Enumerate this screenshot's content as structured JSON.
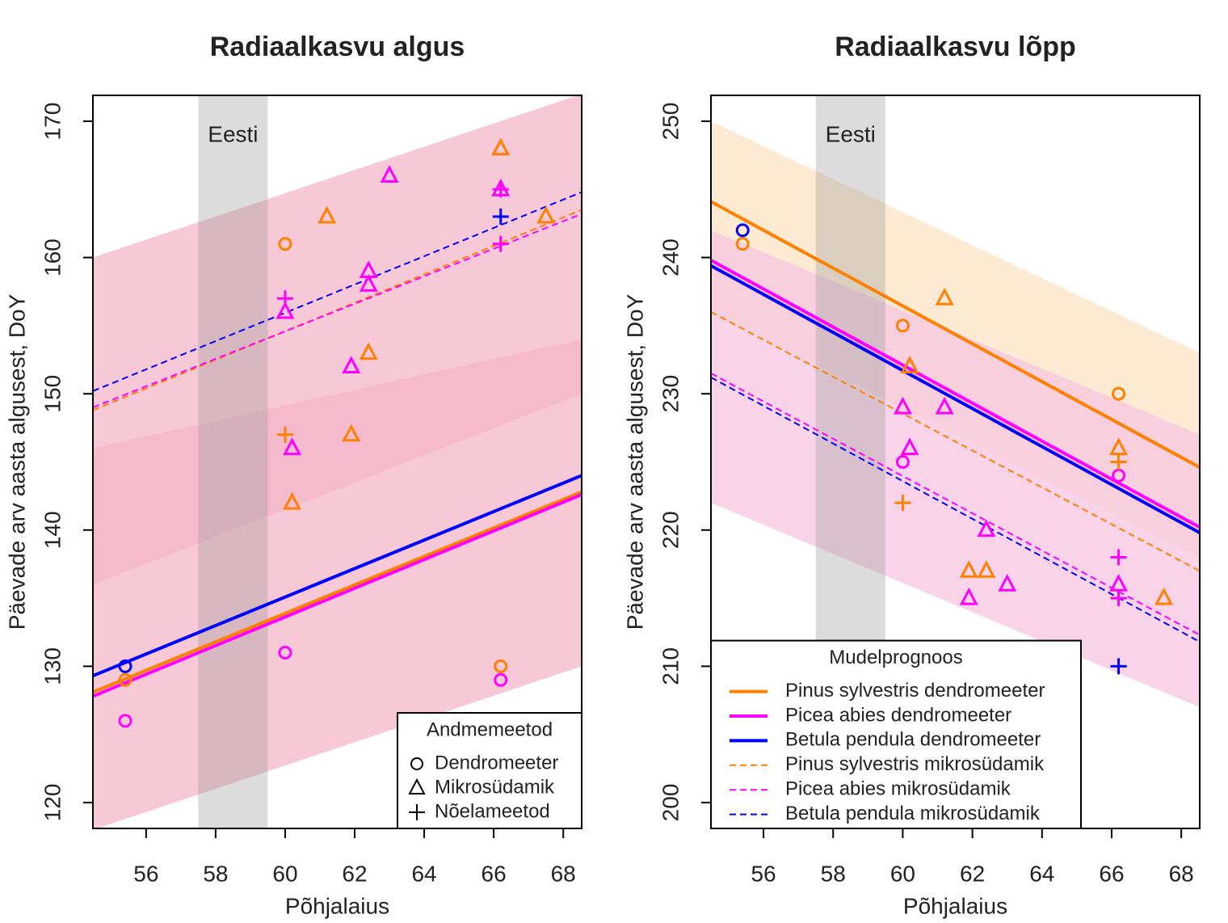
{
  "chart_data": [
    {
      "type": "scatter",
      "title": "Radiaalkasvu algus",
      "xlabel": "Põhjalaius",
      "ylabel": "Päevade arv aasta algusest, DoY",
      "xlim": [
        54.47,
        68.53
      ],
      "ylim": [
        118.1,
        171.9
      ],
      "xticks": [
        56,
        58,
        60,
        62,
        64,
        66,
        68
      ],
      "yticks": [
        120,
        130,
        140,
        150,
        160,
        170
      ],
      "shade": [
        57.5,
        59.5
      ],
      "annotation": "Eesti",
      "bands": [
        {
          "color": "#f4b6c8",
          "x": [
            54.47,
            68.53
          ],
          "lower": [
            118,
            130
          ],
          "upper": [
            146,
            154
          ]
        },
        {
          "color": "#f4b6c8",
          "x": [
            54.47,
            68.53
          ],
          "lower": [
            136,
            150
          ],
          "upper": [
            160,
            172
          ]
        }
      ],
      "lines": [
        {
          "color": "#ff7f00",
          "dash": false,
          "x": [
            54.47,
            68.53
          ],
          "y": [
            128.1,
            142.8
          ]
        },
        {
          "color": "#ff00ff",
          "dash": false,
          "x": [
            54.47,
            68.53
          ],
          "y": [
            127.8,
            142.6
          ]
        },
        {
          "color": "#0000ff",
          "dash": false,
          "x": [
            54.47,
            68.53
          ],
          "y": [
            129.3,
            144
          ]
        },
        {
          "color": "#ff7f00",
          "dash": true,
          "x": [
            54.47,
            68.53
          ],
          "y": [
            148.8,
            163.5
          ]
        },
        {
          "color": "#ff00ff",
          "dash": true,
          "x": [
            54.47,
            68.53
          ],
          "y": [
            149,
            163.2
          ]
        },
        {
          "color": "#0000ff",
          "dash": true,
          "x": [
            54.47,
            68.53
          ],
          "y": [
            150.2,
            164.8
          ]
        }
      ],
      "groups": [
        {
          "marker": "circle",
          "color": "#ff7f00",
          "x": [
            60,
            55.4,
            66.2
          ],
          "y": [
            161,
            129,
            130
          ]
        },
        {
          "marker": "circle",
          "color": "#ff00ff",
          "x": [
            55.4,
            60,
            66.2
          ],
          "y": [
            126,
            131,
            129
          ]
        },
        {
          "marker": "circle",
          "color": "#0000ff",
          "x": [
            55.4
          ],
          "y": [
            130
          ]
        },
        {
          "marker": "triangle",
          "color": "#ff7f00",
          "x": [
            66.2,
            61.2,
            67.5,
            62.4,
            61.9,
            60.2
          ],
          "y": [
            168,
            163,
            163,
            153,
            147,
            142
          ]
        },
        {
          "marker": "triangle",
          "color": "#ff00ff",
          "x": [
            63,
            62.4,
            62.4,
            60,
            61.9,
            60.2,
            66.2
          ],
          "y": [
            166,
            159,
            158,
            156,
            152,
            146,
            165
          ]
        },
        {
          "marker": "plus",
          "color": "#ff7f00",
          "x": [
            60
          ],
          "y": [
            147
          ]
        },
        {
          "marker": "plus",
          "color": "#ff00ff",
          "x": [
            60,
            66.2,
            66.2
          ],
          "y": [
            157,
            165,
            161
          ]
        },
        {
          "marker": "plus",
          "color": "#0000ff",
          "x": [
            66.2
          ],
          "y": [
            163
          ]
        }
      ],
      "legend": {
        "corner": "bottom-right",
        "title": "Andmemeetod",
        "entries": [
          "Dendromeeter",
          "Mikrosüdamik",
          "Nõelameetod"
        ],
        "markers": [
          "circle",
          "triangle",
          "plus"
        ]
      }
    },
    {
      "type": "scatter",
      "title": "Radiaalkasvu lõpp",
      "xlabel": "Põhjalaius",
      "ylabel": "Päevade arv aasta algusest, DoY",
      "xlim": [
        54.49,
        68.53
      ],
      "ylim": [
        198.1,
        251.9
      ],
      "xticks": [
        56,
        58,
        60,
        62,
        64,
        66,
        68
      ],
      "yticks": [
        200,
        210,
        220,
        230,
        240,
        250
      ],
      "shade": [
        57.5,
        59.5
      ],
      "annotation": "Eesti",
      "bands": [
        {
          "color": "#fbe3c4",
          "x": [
            54.49,
            68.53
          ],
          "lower": [
            236,
            218
          ],
          "upper": [
            250,
            233
          ]
        },
        {
          "color": "#f7c6e0",
          "x": [
            54.49,
            68.53
          ],
          "lower": [
            222,
            207
          ],
          "upper": [
            242,
            227
          ]
        }
      ],
      "lines": [
        {
          "name": "Pinus sylvestris dendromeeter",
          "color": "#ff7f00",
          "dash": false,
          "x": [
            54.49,
            68.53
          ],
          "y": [
            244.1,
            224.6
          ]
        },
        {
          "name": "Picea abies dendromeeter",
          "color": "#ff00ff",
          "dash": false,
          "x": [
            54.49,
            68.53
          ],
          "y": [
            239.8,
            220.2
          ]
        },
        {
          "name": "Betula pendula dendromeeter",
          "color": "#0000ff",
          "dash": false,
          "x": [
            54.49,
            68.53
          ],
          "y": [
            239.4,
            219.8
          ]
        },
        {
          "name": "Pinus sylvestris mikrosüdamik",
          "color": "#ff7f00",
          "dash": true,
          "x": [
            54.49,
            68.53
          ],
          "y": [
            236,
            217
          ]
        },
        {
          "name": "Picea abies mikrosüdamik",
          "color": "#ff00ff",
          "dash": true,
          "x": [
            54.49,
            68.53
          ],
          "y": [
            231.5,
            212.3
          ]
        },
        {
          "name": "Betula pendula mikrosüdamik",
          "color": "#0000ff",
          "dash": true,
          "x": [
            54.49,
            68.53
          ],
          "y": [
            231.2,
            211.8
          ]
        }
      ],
      "groups": [
        {
          "marker": "circle",
          "color": "#0000ff",
          "x": [
            55.4
          ],
          "y": [
            242
          ]
        },
        {
          "marker": "circle",
          "color": "#ff7f00",
          "x": [
            55.4,
            60,
            66.2
          ],
          "y": [
            241,
            235,
            230
          ]
        },
        {
          "marker": "circle",
          "color": "#ff00ff",
          "x": [
            60,
            66.2
          ],
          "y": [
            225,
            224
          ]
        },
        {
          "marker": "triangle",
          "color": "#ff7f00",
          "x": [
            61.2,
            60.2,
            66.2,
            67.5,
            61.9,
            62.4
          ],
          "y": [
            237,
            232,
            226,
            215,
            217,
            217
          ]
        },
        {
          "marker": "triangle",
          "color": "#ff00ff",
          "x": [
            60,
            61.2,
            60.2,
            62.4,
            63,
            61.9,
            66.2
          ],
          "y": [
            229,
            229,
            226,
            220,
            216,
            215,
            216
          ]
        },
        {
          "marker": "plus",
          "color": "#ff7f00",
          "x": [
            60,
            66.2
          ],
          "y": [
            222,
            225
          ]
        },
        {
          "marker": "plus",
          "color": "#ff00ff",
          "x": [
            66.2,
            66.2
          ],
          "y": [
            218,
            215
          ]
        },
        {
          "marker": "plus",
          "color": "#0000ff",
          "x": [
            66.2
          ],
          "y": [
            210
          ]
        }
      ],
      "line_legend": {
        "corner": "bottom-left",
        "title": "Mudelprognoos"
      }
    }
  ]
}
